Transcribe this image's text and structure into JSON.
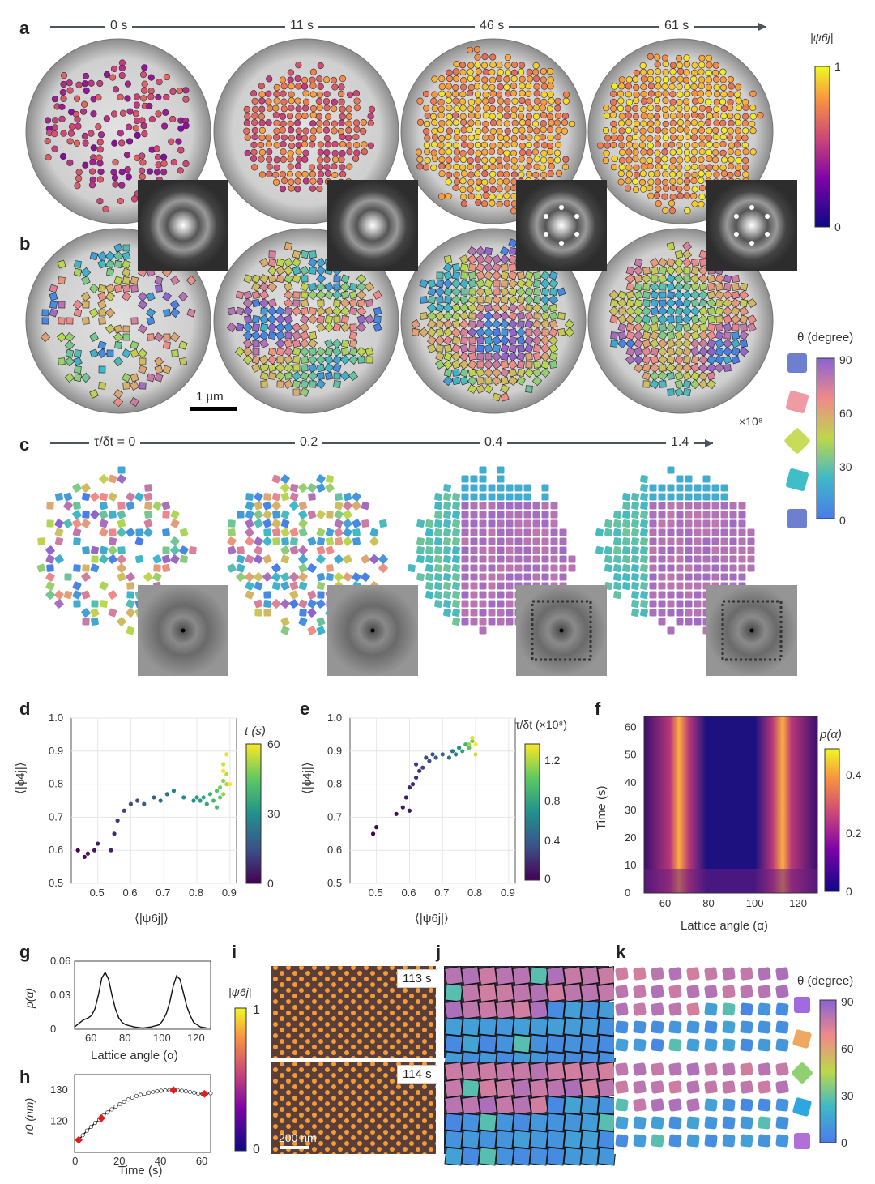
{
  "panels": {
    "a": "a",
    "b": "b",
    "c": "c",
    "d": "d",
    "e": "e",
    "f": "f",
    "g": "g",
    "h": "h",
    "i": "i",
    "j": "j",
    "k": "k"
  },
  "row_a": {
    "times": [
      "0 s",
      "11 s",
      "46 s",
      "61 s"
    ],
    "colorbar": {
      "title": "|ψ6j|",
      "max": "1",
      "min": "0"
    }
  },
  "row_b": {
    "scale_bar": "1 µm",
    "colorbar": {
      "title": "θ (degree)",
      "ticks": [
        "90",
        "60",
        "30",
        "0"
      ]
    }
  },
  "row_c": {
    "times": [
      "τ/δt = 0",
      "0.2",
      "0.4",
      "1.4"
    ],
    "multiplier": "×10⁸"
  },
  "colors": {
    "psi_cmap": [
      "#0d0887",
      "#7e03a8",
      "#cc4778",
      "#f89540",
      "#f0f921"
    ],
    "theta_cmap": [
      "#4a7bea",
      "#3fb8c9",
      "#bcd84a",
      "#f08a8a",
      "#8a63d2"
    ],
    "viridis": [
      "#440154",
      "#3b528b",
      "#21918c",
      "#5ec962",
      "#fde725"
    ]
  },
  "chart_data": [
    {
      "id": "d",
      "type": "scatter",
      "xlabel": "⟨|ψ6j|⟩",
      "ylabel": "⟨|ϕ4j|⟩",
      "xlim": [
        0.42,
        0.92
      ],
      "ylim": [
        0.5,
        1.0
      ],
      "xticks": [
        "0.5",
        "0.6",
        "0.7",
        "0.8",
        "0.9"
      ],
      "yticks": [
        "0.5",
        "0.6",
        "0.7",
        "0.8",
        "0.9",
        "1.0"
      ],
      "colorbar": {
        "title": "t (s)",
        "ticks": [
          "60",
          "30",
          "0"
        ]
      },
      "points": [
        [
          0.44,
          0.6,
          0
        ],
        [
          0.46,
          0.58,
          2
        ],
        [
          0.47,
          0.59,
          3
        ],
        [
          0.49,
          0.6,
          4
        ],
        [
          0.5,
          0.62,
          5
        ],
        [
          0.54,
          0.6,
          6
        ],
        [
          0.55,
          0.65,
          8
        ],
        [
          0.56,
          0.69,
          10
        ],
        [
          0.58,
          0.72,
          12
        ],
        [
          0.6,
          0.74,
          14
        ],
        [
          0.62,
          0.75,
          15
        ],
        [
          0.64,
          0.74,
          17
        ],
        [
          0.67,
          0.76,
          19
        ],
        [
          0.69,
          0.75,
          21
        ],
        [
          0.71,
          0.77,
          23
        ],
        [
          0.73,
          0.78,
          25
        ],
        [
          0.76,
          0.76,
          28
        ],
        [
          0.79,
          0.75,
          30
        ],
        [
          0.8,
          0.76,
          32
        ],
        [
          0.81,
          0.75,
          33
        ],
        [
          0.82,
          0.76,
          35
        ],
        [
          0.83,
          0.74,
          36
        ],
        [
          0.84,
          0.77,
          38
        ],
        [
          0.85,
          0.75,
          40
        ],
        [
          0.86,
          0.73,
          41
        ],
        [
          0.86,
          0.78,
          43
        ],
        [
          0.87,
          0.76,
          45
        ],
        [
          0.87,
          0.79,
          47
        ],
        [
          0.88,
          0.81,
          49
        ],
        [
          0.88,
          0.77,
          50
        ],
        [
          0.89,
          0.8,
          52
        ],
        [
          0.89,
          0.83,
          54
        ],
        [
          0.88,
          0.86,
          56
        ],
        [
          0.89,
          0.89,
          58
        ],
        [
          0.88,
          0.84,
          59
        ],
        [
          0.9,
          0.8,
          60
        ]
      ]
    },
    {
      "id": "e",
      "type": "scatter",
      "xlabel": "⟨|ψ6j|⟩",
      "ylabel": "⟨|ϕ4j|⟩",
      "xlim": [
        0.42,
        0.92
      ],
      "ylim": [
        0.5,
        1.0
      ],
      "xticks": [
        "0.5",
        "0.6",
        "0.7",
        "0.8",
        "0.9"
      ],
      "yticks": [
        "0.5",
        "0.6",
        "0.7",
        "0.8",
        "0.9",
        "1.0"
      ],
      "colorbar": {
        "title": "τ/δt (×10⁸)",
        "ticks": [
          "1.2",
          "0.8",
          "0.4",
          "0"
        ]
      },
      "points": [
        [
          0.49,
          0.65,
          0.0
        ],
        [
          0.5,
          0.67,
          0.02
        ],
        [
          0.56,
          0.71,
          0.05
        ],
        [
          0.58,
          0.73,
          0.08
        ],
        [
          0.6,
          0.72,
          0.1
        ],
        [
          0.59,
          0.76,
          0.12
        ],
        [
          0.6,
          0.79,
          0.15
        ],
        [
          0.61,
          0.8,
          0.18
        ],
        [
          0.62,
          0.82,
          0.2
        ],
        [
          0.63,
          0.84,
          0.22
        ],
        [
          0.62,
          0.86,
          0.25
        ],
        [
          0.64,
          0.85,
          0.28
        ],
        [
          0.65,
          0.88,
          0.3
        ],
        [
          0.66,
          0.87,
          0.33
        ],
        [
          0.67,
          0.89,
          0.36
        ],
        [
          0.68,
          0.88,
          0.4
        ],
        [
          0.7,
          0.89,
          0.45
        ],
        [
          0.72,
          0.88,
          0.5
        ],
        [
          0.73,
          0.9,
          0.55
        ],
        [
          0.74,
          0.89,
          0.6
        ],
        [
          0.75,
          0.91,
          0.7
        ],
        [
          0.76,
          0.9,
          0.8
        ],
        [
          0.77,
          0.92,
          0.9
        ],
        [
          0.78,
          0.91,
          1.0
        ],
        [
          0.79,
          0.93,
          1.1
        ],
        [
          0.78,
          0.92,
          1.2
        ],
        [
          0.8,
          0.89,
          1.3
        ],
        [
          0.79,
          0.94,
          1.35
        ],
        [
          0.8,
          0.92,
          1.4
        ]
      ]
    },
    {
      "id": "f",
      "type": "heatmap",
      "xlabel": "Lattice angle (α)",
      "ylabel": "Time (s)",
      "xticks": [
        "60",
        "80",
        "100",
        "120"
      ],
      "yticks": [
        "0",
        "10",
        "20",
        "30",
        "40",
        "50",
        "60"
      ],
      "xlim": [
        50,
        130
      ],
      "ylim": [
        0,
        64
      ],
      "peaks": [
        68,
        110
      ],
      "colorbar": {
        "title": "p(α)",
        "ticks": [
          "0.4",
          "0.2",
          "0"
        ]
      }
    },
    {
      "id": "g",
      "type": "line",
      "xlabel": "Lattice angle (α)",
      "ylabel": "p(α)",
      "xlim": [
        50,
        130
      ],
      "ylim": [
        0,
        0.06
      ],
      "xticks": [
        "60",
        "80",
        "100",
        "120"
      ],
      "yticks": [
        "0",
        "0.03",
        "0.06"
      ],
      "x": [
        50,
        55,
        58,
        60,
        62,
        64,
        66,
        68,
        70,
        72,
        74,
        76,
        78,
        80,
        85,
        90,
        95,
        100,
        102,
        104,
        106,
        108,
        110,
        112,
        114,
        116,
        118,
        120,
        124,
        128
      ],
      "y": [
        0.002,
        0.008,
        0.01,
        0.012,
        0.018,
        0.03,
        0.045,
        0.05,
        0.044,
        0.03,
        0.018,
        0.01,
        0.006,
        0.004,
        0.002,
        0.001,
        0.002,
        0.004,
        0.008,
        0.014,
        0.024,
        0.038,
        0.047,
        0.044,
        0.032,
        0.02,
        0.012,
        0.006,
        0.002,
        0.001
      ]
    },
    {
      "id": "h",
      "type": "line",
      "xlabel": "Time (s)",
      "ylabel": "r0 (nm)",
      "xlim": [
        -2,
        64
      ],
      "ylim": [
        110,
        135
      ],
      "xticks": [
        "0",
        "20",
        "40",
        "60"
      ],
      "yticks": [
        "120",
        "130"
      ],
      "x": [
        0,
        2,
        4,
        6,
        8,
        10,
        12,
        14,
        16,
        18,
        20,
        22,
        24,
        26,
        28,
        30,
        32,
        34,
        36,
        38,
        40,
        42,
        44,
        46,
        48,
        50,
        52,
        54,
        56,
        58,
        60,
        62,
        64
      ],
      "y": [
        114.0,
        115.5,
        117.0,
        118.2,
        119.5,
        120.5,
        121.8,
        122.8,
        123.8,
        124.7,
        125.5,
        126.3,
        127.0,
        127.6,
        128.1,
        128.5,
        128.9,
        129.2,
        129.4,
        129.6,
        129.8,
        129.9,
        130.0,
        130.0,
        130.0,
        129.8,
        129.6,
        129.4,
        129.2,
        128.9,
        128.8,
        129.0,
        129.0
      ],
      "highlight": [
        [
          0,
          114.0
        ],
        [
          11,
          121.0
        ],
        [
          46,
          130.0
        ],
        [
          61,
          128.8
        ]
      ]
    }
  ],
  "row_i": {
    "times": [
      "113 s",
      "114 s"
    ],
    "scale_bar": "200 nm",
    "colorbar": {
      "title": "|ψ6j|",
      "max": "1",
      "min": "0"
    }
  },
  "row_k": {
    "colorbar": {
      "title": "θ (degree)",
      "ticks": [
        "90",
        "60",
        "30",
        "0"
      ]
    }
  }
}
